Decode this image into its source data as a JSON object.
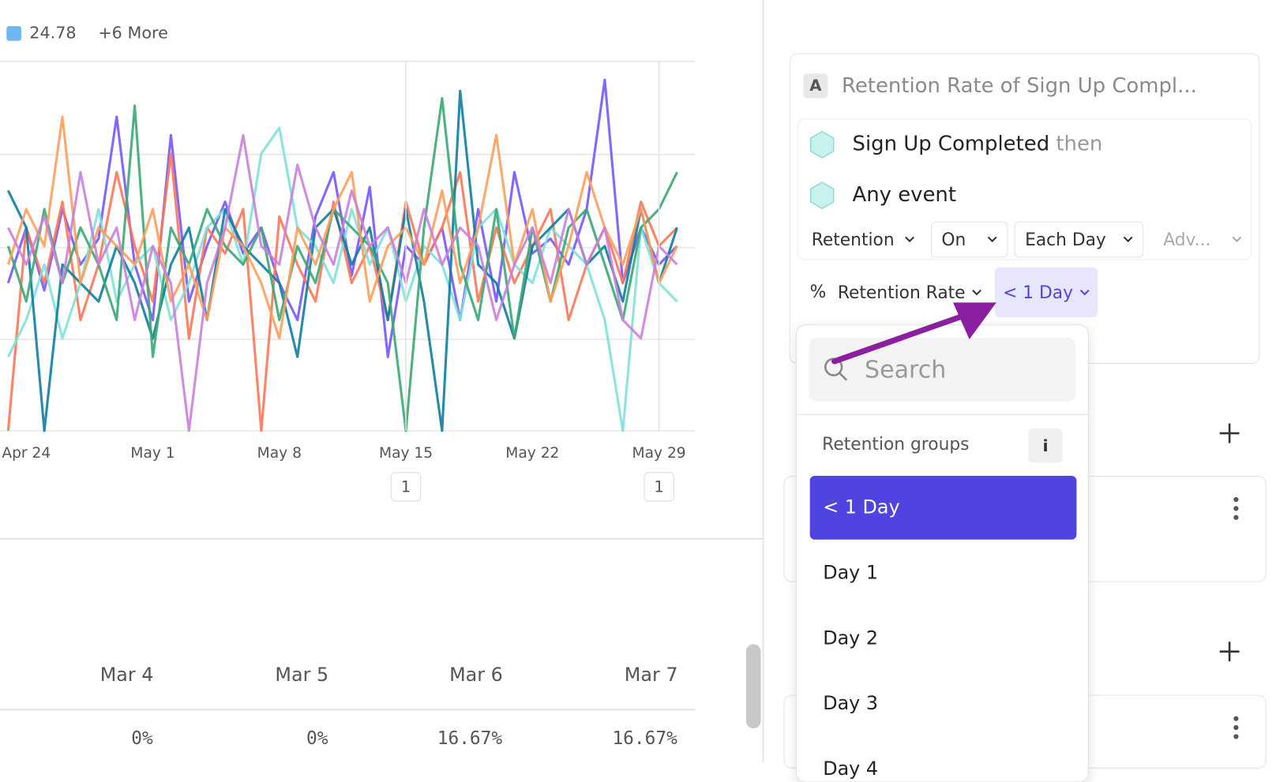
{
  "legend": {
    "value": 24.78,
    "more": "+6 More"
  },
  "chart_data": {
    "type": "line",
    "categories": [
      null,
      "Apr 24",
      null,
      null,
      null,
      null,
      null,
      null,
      "May 1",
      null,
      null,
      null,
      null,
      null,
      null,
      "May 8",
      null,
      null,
      null,
      null,
      null,
      null,
      "May 15",
      null,
      null,
      null,
      null,
      null,
      null,
      "May 22",
      null,
      null,
      null,
      null,
      null,
      null,
      "May 29",
      null
    ],
    "ylim": [
      0,
      100
    ],
    "annotations": [
      "1",
      "1"
    ],
    "series": [
      {
        "color": "#7856ff",
        "values": [
          40,
          55,
          38,
          60,
          45,
          52,
          85,
          45,
          30,
          80,
          35,
          50,
          62,
          48,
          55,
          40,
          30,
          58,
          70,
          42,
          66,
          20,
          50,
          45,
          55,
          30,
          60,
          35,
          70,
          48,
          52,
          45,
          60,
          95,
          40,
          55,
          45,
          50
        ]
      },
      {
        "color": "#ff7557",
        "values": [
          0,
          55,
          40,
          62,
          30,
          45,
          70,
          50,
          35,
          75,
          25,
          55,
          48,
          60,
          0,
          58,
          45,
          35,
          62,
          40,
          50,
          30,
          62,
          45,
          55,
          70,
          35,
          55,
          40,
          50,
          60,
          30,
          45,
          55,
          40,
          62,
          50,
          55
        ]
      },
      {
        "color": "#80e1d9",
        "values": [
          20,
          30,
          45,
          25,
          40,
          60,
          35,
          45,
          50,
          30,
          40,
          55,
          60,
          45,
          75,
          82,
          55,
          50,
          40,
          60,
          45,
          55,
          35,
          50,
          45,
          30,
          55,
          60,
          45,
          40,
          55,
          50,
          45,
          30,
          0,
          55,
          40,
          35
        ]
      },
      {
        "color": "#0d7ea0",
        "values": [
          65,
          55,
          0,
          45,
          40,
          35,
          50,
          40,
          25,
          45,
          55,
          30,
          60,
          50,
          45,
          40,
          20,
          55,
          60,
          45,
          55,
          30,
          60,
          35,
          0,
          92,
          45,
          40,
          25,
          50,
          55,
          60,
          45,
          50,
          35,
          60,
          40,
          55
        ]
      },
      {
        "color": "#3ba974",
        "values": [
          50,
          35,
          60,
          40,
          55,
          45,
          30,
          88,
          20,
          55,
          45,
          60,
          50,
          45,
          55,
          30,
          50,
          40,
          60,
          55,
          50,
          40,
          0,
          55,
          90,
          45,
          30,
          60,
          25,
          55,
          35,
          55,
          60,
          45,
          30,
          55,
          60,
          70
        ]
      },
      {
        "color": "#ff9f5a",
        "values": [
          45,
          60,
          50,
          85,
          40,
          55,
          50,
          45,
          60,
          35,
          45,
          30,
          55,
          50,
          40,
          25,
          55,
          45,
          60,
          70,
          35,
          50,
          55,
          45,
          65,
          40,
          55,
          80,
          45,
          60,
          35,
          50,
          70,
          55,
          45,
          60,
          40,
          50
        ]
      },
      {
        "color": "#cb80dc",
        "values": [
          55,
          45,
          58,
          40,
          70,
          45,
          55,
          30,
          50,
          40,
          0,
          40,
          55,
          80,
          50,
          45,
          72,
          55,
          45,
          65,
          50,
          55,
          40,
          60,
          45,
          55,
          50,
          30,
          45,
          55,
          40,
          60,
          45,
          55,
          30,
          25,
          50,
          45
        ]
      }
    ]
  },
  "table": {
    "columns": [
      "Mar 4",
      "Mar 5",
      "Mar 6",
      "Mar 7"
    ],
    "values": [
      "0%",
      "0%",
      "16.67%",
      "16.67%"
    ]
  },
  "panel": {
    "badge": "A",
    "title": "Retention Rate of Sign Up Compl...",
    "event1": "Sign Up Completed",
    "then": "then",
    "event2": "Any event",
    "controls": [
      "Retention",
      "On",
      "Each Day",
      "Adv..."
    ],
    "measure_symbol": "%",
    "measure": "Retention Rate",
    "group": "< 1 Day"
  },
  "dropdown": {
    "search": "Search",
    "section": "Retention groups",
    "info": "i",
    "items": [
      "< 1 Day",
      "Day 1",
      "Day 2",
      "Day 3",
      "Day 4"
    ]
  }
}
